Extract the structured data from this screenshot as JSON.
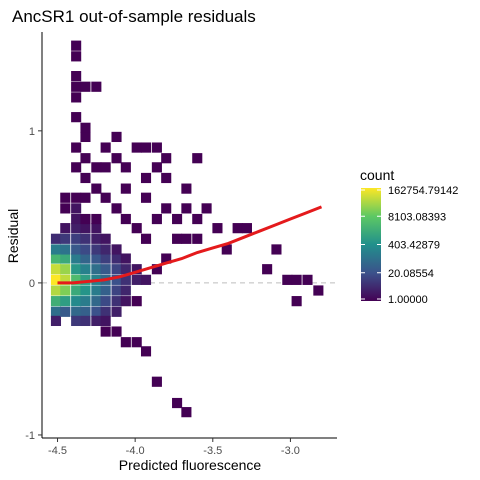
{
  "chart_data": {
    "type": "heatmap",
    "title": "AncSR1 out-of-sample residuals",
    "xlabel": "Predicted fluorescence",
    "ylabel": "Residual",
    "xlim": [
      -4.6,
      -2.7
    ],
    "ylim": [
      -1.02,
      1.65
    ],
    "x_ticks": [
      -4.5,
      -4.0,
      -3.5,
      -3.0
    ],
    "x_tick_labels": [
      "-4.5",
      "-4.0",
      "-3.5",
      "-3.0"
    ],
    "y_ticks": [
      -1,
      0,
      1
    ],
    "y_tick_labels": [
      "-1",
      "0",
      "1"
    ],
    "reference_line": {
      "y": 0,
      "style": "dashed",
      "color": "#bdbdbd"
    },
    "color_scale": {
      "name": "viridis",
      "transform": "log",
      "title": "count",
      "min": 1.0,
      "max": 162754.79142,
      "breaks": [
        162754.79142,
        8103.08393,
        403.42879,
        20.08554,
        1.0
      ],
      "break_labels": [
        "162754.79142",
        "8103.08393",
        "403.42879",
        "20.08554",
        "1.00000"
      ],
      "colors": [
        "#440154",
        "#3b528b",
        "#21908c",
        "#5dc863",
        "#fde725"
      ]
    },
    "bin_width": {
      "x": 0.065,
      "y": 0.067
    },
    "bins": [
      {
        "x": -4.51,
        "y": 0.02,
        "count": 162754
      },
      {
        "x": -4.51,
        "y": 0.09,
        "count": 60000
      },
      {
        "x": -4.51,
        "y": -0.05,
        "count": 40000
      },
      {
        "x": -4.51,
        "y": 0.16,
        "count": 3000
      },
      {
        "x": -4.51,
        "y": -0.12,
        "count": 2000
      },
      {
        "x": -4.51,
        "y": 0.22,
        "count": 150
      },
      {
        "x": -4.51,
        "y": -0.19,
        "count": 80
      },
      {
        "x": -4.51,
        "y": 0.29,
        "count": 5
      },
      {
        "x": -4.51,
        "y": -0.25,
        "count": 3
      },
      {
        "x": -4.45,
        "y": 0.02,
        "count": 50000
      },
      {
        "x": -4.45,
        "y": 0.09,
        "count": 25000
      },
      {
        "x": -4.45,
        "y": -0.05,
        "count": 15000
      },
      {
        "x": -4.45,
        "y": 0.16,
        "count": 1500
      },
      {
        "x": -4.45,
        "y": -0.12,
        "count": 800
      },
      {
        "x": -4.45,
        "y": 0.22,
        "count": 100
      },
      {
        "x": -4.45,
        "y": -0.19,
        "count": 30
      },
      {
        "x": -4.45,
        "y": 0.29,
        "count": 8
      },
      {
        "x": -4.45,
        "y": 0.36,
        "count": 2
      },
      {
        "x": -4.45,
        "y": 0.49,
        "count": 1
      },
      {
        "x": -4.45,
        "y": 0.56,
        "count": 1
      },
      {
        "x": -4.38,
        "y": 0.02,
        "count": 4000
      },
      {
        "x": -4.38,
        "y": 0.09,
        "count": 600
      },
      {
        "x": -4.38,
        "y": -0.05,
        "count": 1500
      },
      {
        "x": -4.38,
        "y": 0.16,
        "count": 150
      },
      {
        "x": -4.38,
        "y": -0.12,
        "count": 300
      },
      {
        "x": -4.38,
        "y": 0.22,
        "count": 30
      },
      {
        "x": -4.38,
        "y": -0.19,
        "count": 60
      },
      {
        "x": -4.38,
        "y": 0.29,
        "count": 10
      },
      {
        "x": -4.38,
        "y": -0.25,
        "count": 8
      },
      {
        "x": -4.38,
        "y": 0.36,
        "count": 3
      },
      {
        "x": -4.38,
        "y": 0.42,
        "count": 2
      },
      {
        "x": -4.38,
        "y": 0.49,
        "count": 2
      },
      {
        "x": -4.38,
        "y": 0.56,
        "count": 1
      },
      {
        "x": -4.38,
        "y": 0.76,
        "count": 1
      },
      {
        "x": -4.38,
        "y": 0.89,
        "count": 1
      },
      {
        "x": -4.38,
        "y": 1.09,
        "count": 1
      },
      {
        "x": -4.38,
        "y": 1.22,
        "count": 1
      },
      {
        "x": -4.38,
        "y": 1.29,
        "count": 1
      },
      {
        "x": -4.38,
        "y": 1.36,
        "count": 1
      },
      {
        "x": -4.38,
        "y": 1.49,
        "count": 1
      },
      {
        "x": -4.38,
        "y": 1.56,
        "count": 1
      },
      {
        "x": -4.32,
        "y": 0.02,
        "count": 800
      },
      {
        "x": -4.32,
        "y": 0.09,
        "count": 200
      },
      {
        "x": -4.32,
        "y": -0.05,
        "count": 500
      },
      {
        "x": -4.32,
        "y": 0.16,
        "count": 50
      },
      {
        "x": -4.32,
        "y": -0.12,
        "count": 150
      },
      {
        "x": -4.32,
        "y": 0.22,
        "count": 15
      },
      {
        "x": -4.32,
        "y": -0.19,
        "count": 40
      },
      {
        "x": -4.32,
        "y": 0.29,
        "count": 6
      },
      {
        "x": -4.32,
        "y": -0.25,
        "count": 6
      },
      {
        "x": -4.32,
        "y": 0.36,
        "count": 2
      },
      {
        "x": -4.32,
        "y": 0.42,
        "count": 1
      },
      {
        "x": -4.32,
        "y": 0.56,
        "count": 1
      },
      {
        "x": -4.32,
        "y": 0.69,
        "count": 1
      },
      {
        "x": -4.32,
        "y": 0.82,
        "count": 1
      },
      {
        "x": -4.32,
        "y": 0.96,
        "count": 1
      },
      {
        "x": -4.32,
        "y": 1.02,
        "count": 1
      },
      {
        "x": -4.32,
        "y": 1.29,
        "count": 1
      },
      {
        "x": -4.25,
        "y": 0.02,
        "count": 200
      },
      {
        "x": -4.25,
        "y": 0.09,
        "count": 80
      },
      {
        "x": -4.25,
        "y": -0.05,
        "count": 150
      },
      {
        "x": -4.25,
        "y": 0.16,
        "count": 25
      },
      {
        "x": -4.25,
        "y": -0.12,
        "count": 60
      },
      {
        "x": -4.25,
        "y": 0.22,
        "count": 8
      },
      {
        "x": -4.25,
        "y": -0.19,
        "count": 20
      },
      {
        "x": -4.25,
        "y": 0.29,
        "count": 3
      },
      {
        "x": -4.25,
        "y": -0.25,
        "count": 3
      },
      {
        "x": -4.25,
        "y": 0.36,
        "count": 2
      },
      {
        "x": -4.25,
        "y": 0.42,
        "count": 1
      },
      {
        "x": -4.25,
        "y": 0.62,
        "count": 1
      },
      {
        "x": -4.25,
        "y": 0.76,
        "count": 1
      },
      {
        "x": -4.25,
        "y": 1.29,
        "count": 1
      },
      {
        "x": -4.19,
        "y": 0.02,
        "count": 60
      },
      {
        "x": -4.19,
        "y": 0.09,
        "count": 30
      },
      {
        "x": -4.19,
        "y": -0.05,
        "count": 40
      },
      {
        "x": -4.19,
        "y": 0.16,
        "count": 10
      },
      {
        "x": -4.19,
        "y": -0.12,
        "count": 15
      },
      {
        "x": -4.19,
        "y": 0.22,
        "count": 4
      },
      {
        "x": -4.19,
        "y": -0.19,
        "count": 6
      },
      {
        "x": -4.19,
        "y": 0.29,
        "count": 2
      },
      {
        "x": -4.19,
        "y": -0.25,
        "count": 2
      },
      {
        "x": -4.19,
        "y": -0.32,
        "count": 1
      },
      {
        "x": -4.19,
        "y": 0.56,
        "count": 1
      },
      {
        "x": -4.19,
        "y": 0.76,
        "count": 1
      },
      {
        "x": -4.19,
        "y": 0.89,
        "count": 1
      },
      {
        "x": -4.12,
        "y": 0.02,
        "count": 20
      },
      {
        "x": -4.12,
        "y": 0.09,
        "count": 12
      },
      {
        "x": -4.12,
        "y": -0.05,
        "count": 12
      },
      {
        "x": -4.12,
        "y": 0.16,
        "count": 5
      },
      {
        "x": -4.12,
        "y": -0.12,
        "count": 6
      },
      {
        "x": -4.12,
        "y": 0.22,
        "count": 2
      },
      {
        "x": -4.12,
        "y": -0.19,
        "count": 3
      },
      {
        "x": -4.12,
        "y": -0.32,
        "count": 1
      },
      {
        "x": -4.12,
        "y": 0.49,
        "count": 1
      },
      {
        "x": -4.12,
        "y": 0.82,
        "count": 1
      },
      {
        "x": -4.12,
        "y": 0.96,
        "count": 1
      },
      {
        "x": -4.06,
        "y": 0.02,
        "count": 6
      },
      {
        "x": -4.06,
        "y": 0.09,
        "count": 4
      },
      {
        "x": -4.06,
        "y": -0.05,
        "count": 4
      },
      {
        "x": -4.06,
        "y": 0.16,
        "count": 2
      },
      {
        "x": -4.06,
        "y": -0.12,
        "count": 2
      },
      {
        "x": -4.06,
        "y": -0.39,
        "count": 1
      },
      {
        "x": -4.06,
        "y": 0.42,
        "count": 1
      },
      {
        "x": -4.06,
        "y": 0.62,
        "count": 1
      },
      {
        "x": -4.06,
        "y": 0.76,
        "count": 1
      },
      {
        "x": -3.99,
        "y": 0.02,
        "count": 3
      },
      {
        "x": -3.99,
        "y": 0.09,
        "count": 2
      },
      {
        "x": -3.99,
        "y": -0.12,
        "count": 1
      },
      {
        "x": -3.99,
        "y": -0.39,
        "count": 1
      },
      {
        "x": -3.99,
        "y": 0.36,
        "count": 1
      },
      {
        "x": -3.99,
        "y": 0.89,
        "count": 1
      },
      {
        "x": -3.93,
        "y": 0.02,
        "count": 2
      },
      {
        "x": -3.93,
        "y": -0.45,
        "count": 1
      },
      {
        "x": -3.93,
        "y": 0.29,
        "count": 1
      },
      {
        "x": -3.93,
        "y": 0.56,
        "count": 1
      },
      {
        "x": -3.93,
        "y": 0.69,
        "count": 1
      },
      {
        "x": -3.93,
        "y": 0.89,
        "count": 1
      },
      {
        "x": -3.86,
        "y": 0.09,
        "count": 1
      },
      {
        "x": -3.86,
        "y": -0.65,
        "count": 1
      },
      {
        "x": -3.86,
        "y": 0.42,
        "count": 1
      },
      {
        "x": -3.86,
        "y": 0.76,
        "count": 1
      },
      {
        "x": -3.86,
        "y": 0.89,
        "count": 1
      },
      {
        "x": -3.8,
        "y": 0.16,
        "count": 1
      },
      {
        "x": -3.8,
        "y": 0.49,
        "count": 1
      },
      {
        "x": -3.8,
        "y": 0.69,
        "count": 1
      },
      {
        "x": -3.8,
        "y": 0.82,
        "count": 1
      },
      {
        "x": -3.73,
        "y": 0.29,
        "count": 1
      },
      {
        "x": -3.73,
        "y": -0.79,
        "count": 1
      },
      {
        "x": -3.73,
        "y": 0.42,
        "count": 1
      },
      {
        "x": -3.67,
        "y": 0.29,
        "count": 1
      },
      {
        "x": -3.67,
        "y": -0.85,
        "count": 1
      },
      {
        "x": -3.67,
        "y": 0.49,
        "count": 1
      },
      {
        "x": -3.67,
        "y": 0.62,
        "count": 1
      },
      {
        "x": -3.6,
        "y": 0.29,
        "count": 1
      },
      {
        "x": -3.6,
        "y": 0.42,
        "count": 1
      },
      {
        "x": -3.6,
        "y": 0.82,
        "count": 1
      },
      {
        "x": -3.54,
        "y": 0.49,
        "count": 1
      },
      {
        "x": -3.47,
        "y": 0.36,
        "count": 1
      },
      {
        "x": -3.41,
        "y": 0.22,
        "count": 1
      },
      {
        "x": -3.34,
        "y": 0.36,
        "count": 1
      },
      {
        "x": -3.28,
        "y": 0.36,
        "count": 1
      },
      {
        "x": -3.15,
        "y": 0.09,
        "count": 1
      },
      {
        "x": -3.09,
        "y": 0.22,
        "count": 1
      },
      {
        "x": -3.02,
        "y": 0.02,
        "count": 1
      },
      {
        "x": -2.96,
        "y": 0.02,
        "count": 1
      },
      {
        "x": -2.96,
        "y": -0.12,
        "count": 1
      },
      {
        "x": -2.89,
        "y": 0.02,
        "count": 1
      },
      {
        "x": -2.82,
        "y": -0.05,
        "count": 1
      }
    ],
    "smooth_curve": {
      "color": "#e41a1c",
      "x": [
        -4.5,
        -4.4,
        -4.3,
        -4.2,
        -4.1,
        -4.0,
        -3.9,
        -3.8,
        -3.7,
        -3.6,
        -3.5,
        -3.4,
        -3.3,
        -3.2,
        -3.1,
        -3.0,
        -2.9,
        -2.8
      ],
      "y": [
        0.0,
        0.0,
        0.01,
        0.02,
        0.04,
        0.07,
        0.1,
        0.13,
        0.16,
        0.2,
        0.23,
        0.26,
        0.3,
        0.34,
        0.38,
        0.42,
        0.46,
        0.5
      ]
    }
  }
}
